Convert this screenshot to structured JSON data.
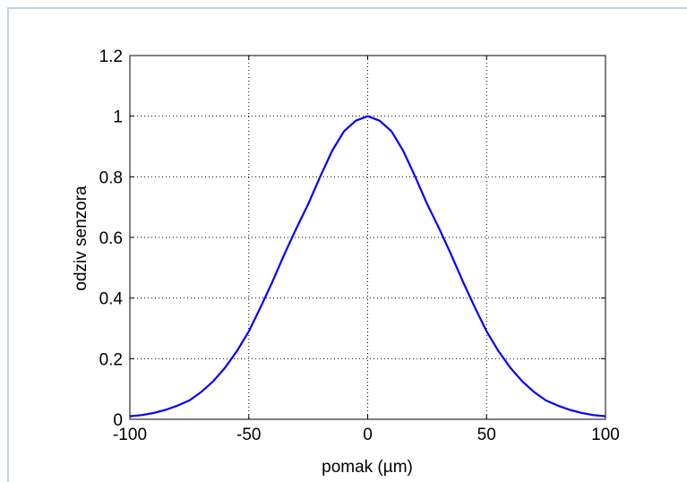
{
  "chart_data": {
    "type": "line",
    "xlabel": "pomak (µm)",
    "ylabel": "odziv senzora",
    "xlim": [
      -100,
      100
    ],
    "ylim": [
      0,
      1.2
    ],
    "xticks": [
      -100,
      -50,
      0,
      50,
      100
    ],
    "yticks": [
      0,
      0.2,
      0.4,
      0.6,
      0.8,
      1,
      1.2
    ],
    "xtick_labels": [
      "-100",
      "-50",
      "0",
      "50",
      "100"
    ],
    "ytick_labels": [
      "0",
      "0.2",
      "0.4",
      "0.6",
      "0.8",
      "1",
      "1.2"
    ],
    "grid": true,
    "series": [
      {
        "color": "#0000ff",
        "x": [
          -100,
          -95,
          -90,
          -85,
          -80,
          -75,
          -70,
          -65,
          -60,
          -55,
          -50,
          -45,
          -40,
          -35,
          -30,
          -25,
          -20,
          -15,
          -10,
          -5,
          0,
          5,
          10,
          15,
          20,
          25,
          30,
          35,
          40,
          45,
          50,
          55,
          60,
          65,
          70,
          75,
          80,
          85,
          90,
          95,
          100
        ],
        "y": [
          0.01,
          0.014,
          0.021,
          0.031,
          0.045,
          0.062,
          0.09,
          0.125,
          0.17,
          0.225,
          0.29,
          0.37,
          0.455,
          0.545,
          0.63,
          0.71,
          0.8,
          0.885,
          0.95,
          0.985,
          1.0,
          0.985,
          0.95,
          0.885,
          0.8,
          0.71,
          0.63,
          0.545,
          0.455,
          0.37,
          0.29,
          0.225,
          0.17,
          0.125,
          0.09,
          0.062,
          0.045,
          0.031,
          0.021,
          0.014,
          0.01
        ]
      }
    ]
  },
  "colors": {
    "frame_border": "#c5d3e0",
    "series": "#0000ff",
    "grid": "#000000"
  }
}
